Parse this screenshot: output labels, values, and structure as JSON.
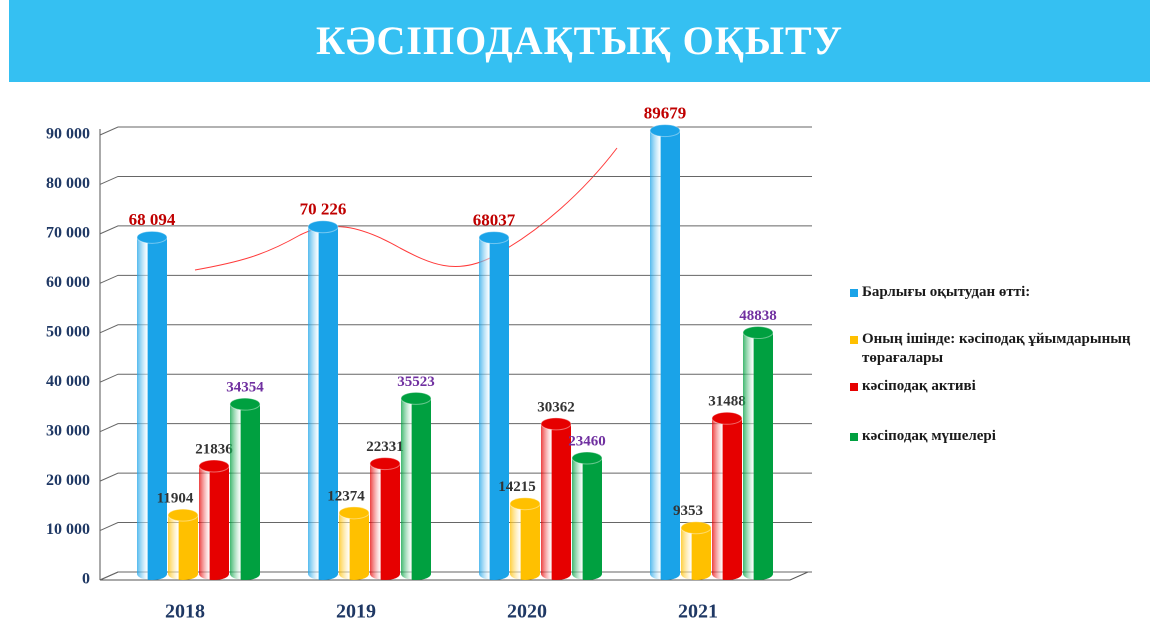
{
  "chart_data": {
    "type": "bar",
    "title": "КӘСІПОДАҚТЫҚ ОҚЫТУ",
    "categories": [
      "2018",
      "2019",
      "2020",
      "2021"
    ],
    "series": [
      {
        "name": "Барлығы оқытудан өтті:",
        "color": "#1aa3e8",
        "values": [
          68094,
          70226,
          68037,
          89679
        ],
        "value_labels": [
          "68 094",
          "70 226",
          "68037",
          "89679"
        ]
      },
      {
        "name": "Оның ішінде: кәсіподақ ұйымдарының төрағалары",
        "color": "#ffc000",
        "values": [
          11904,
          12374,
          14215,
          9353
        ]
      },
      {
        "name": "кәсіподақ активі",
        "color": "#e60000",
        "values": [
          21836,
          22331,
          30362,
          31488
        ]
      },
      {
        "name": "кәсіподақ мүшелері",
        "color": "#00a040",
        "values": [
          34354,
          35523,
          23460,
          48838
        ]
      }
    ],
    "ylim": [
      0,
      90000
    ],
    "yticks": [
      0,
      {
        "value": 10000,
        "label": "10 000"
      },
      {
        "value": 20000,
        "label": "20 000"
      },
      {
        "value": 30000,
        "label": "30 000"
      },
      {
        "value": 40000,
        "label": "40 000"
      },
      {
        "value": 50000,
        "label": "50 000"
      },
      {
        "value": 60000,
        "label": "60 000"
      },
      {
        "value": 70000,
        "label": "70 000"
      },
      {
        "value": 80000,
        "label": "80 000"
      },
      {
        "value": 90000,
        "label": "90 000"
      }
    ],
    "grid": true,
    "legend": "right"
  }
}
